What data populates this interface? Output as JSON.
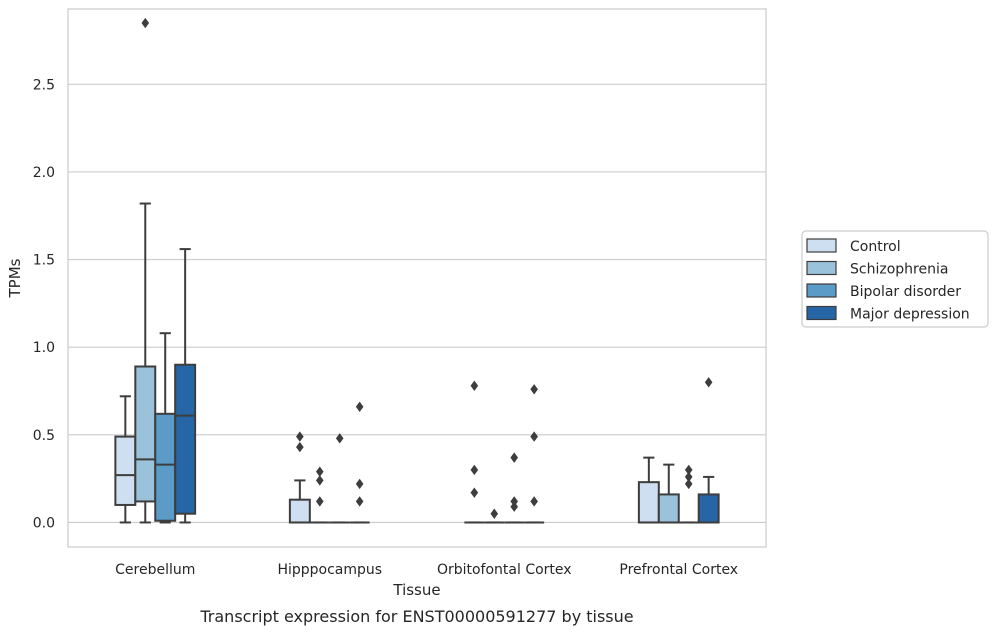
{
  "chart_data": {
    "type": "box",
    "title": "",
    "caption": "Transcript expression for ENST00000591277 by tissue",
    "xlabel": "Tissue",
    "ylabel": "TPMs",
    "ylim": [
      -0.14,
      2.93
    ],
    "yticks": [
      0.0,
      0.5,
      1.0,
      1.5,
      2.0,
      2.5
    ],
    "ytick_labels": [
      "0.0",
      "0.5",
      "1.0",
      "1.5",
      "2.0",
      "2.5"
    ],
    "grid": "horizontal",
    "legend_position": "right",
    "categories": [
      "Cerebellum",
      "Hipppocampus",
      "Orbitofontal Cortex",
      "Prefrontal Cortex"
    ],
    "series": [
      {
        "name": "Control",
        "color": "#cddff0",
        "boxes": [
          {
            "q1": 0.1,
            "median": 0.27,
            "q3": 0.49,
            "whisker_low": 0.0,
            "whisker_high": 0.72,
            "outliers": []
          },
          {
            "q1": 0.0,
            "median": 0.0,
            "q3": 0.13,
            "whisker_low": 0.0,
            "whisker_high": 0.24,
            "outliers": [
              0.43,
              0.49
            ]
          },
          {
            "q1": 0.0,
            "median": 0.0,
            "q3": 0.0,
            "whisker_low": 0.0,
            "whisker_high": 0.0,
            "outliers": [
              0.17,
              0.3,
              0.78
            ]
          },
          {
            "q1": 0.0,
            "median": 0.0,
            "q3": 0.23,
            "whisker_low": 0.0,
            "whisker_high": 0.37,
            "outliers": []
          }
        ]
      },
      {
        "name": "Schizophrenia",
        "color": "#9ac2da",
        "boxes": [
          {
            "q1": 0.12,
            "median": 0.36,
            "q3": 0.89,
            "whisker_low": 0.0,
            "whisker_high": 1.82,
            "outliers": [
              2.85
            ]
          },
          {
            "q1": 0.0,
            "median": 0.0,
            "q3": 0.0,
            "whisker_low": 0.0,
            "whisker_high": 0.0,
            "outliers": [
              0.12,
              0.24,
              0.29
            ]
          },
          {
            "q1": 0.0,
            "median": 0.0,
            "q3": 0.0,
            "whisker_low": 0.0,
            "whisker_high": 0.0,
            "outliers": [
              0.05
            ]
          },
          {
            "q1": 0.0,
            "median": 0.0,
            "q3": 0.16,
            "whisker_low": 0.0,
            "whisker_high": 0.33,
            "outliers": []
          }
        ]
      },
      {
        "name": "Bipolar disorder",
        "color": "#5b9bc8",
        "boxes": [
          {
            "q1": 0.01,
            "median": 0.33,
            "q3": 0.62,
            "whisker_low": 0.0,
            "whisker_high": 1.08,
            "outliers": []
          },
          {
            "q1": 0.0,
            "median": 0.0,
            "q3": 0.0,
            "whisker_low": 0.0,
            "whisker_high": 0.0,
            "outliers": [
              0.48
            ]
          },
          {
            "q1": 0.0,
            "median": 0.0,
            "q3": 0.0,
            "whisker_low": 0.0,
            "whisker_high": 0.0,
            "outliers": [
              0.09,
              0.12,
              0.37
            ]
          },
          {
            "q1": 0.0,
            "median": 0.0,
            "q3": 0.0,
            "whisker_low": 0.0,
            "whisker_high": 0.0,
            "outliers": [
              0.22,
              0.26,
              0.3
            ]
          }
        ]
      },
      {
        "name": "Major depression",
        "color": "#2666a6",
        "boxes": [
          {
            "q1": 0.05,
            "median": 0.61,
            "q3": 0.9,
            "whisker_low": 0.0,
            "whisker_high": 1.56,
            "outliers": []
          },
          {
            "q1": 0.0,
            "median": 0.0,
            "q3": 0.0,
            "whisker_low": 0.0,
            "whisker_high": 0.0,
            "outliers": [
              0.12,
              0.22,
              0.66
            ]
          },
          {
            "q1": 0.0,
            "median": 0.0,
            "q3": 0.0,
            "whisker_low": 0.0,
            "whisker_high": 0.0,
            "outliers": [
              0.12,
              0.49,
              0.76
            ]
          },
          {
            "q1": 0.0,
            "median": 0.0,
            "q3": 0.16,
            "whisker_low": 0.0,
            "whisker_high": 0.26,
            "outliers": [
              0.8
            ]
          }
        ]
      }
    ]
  }
}
